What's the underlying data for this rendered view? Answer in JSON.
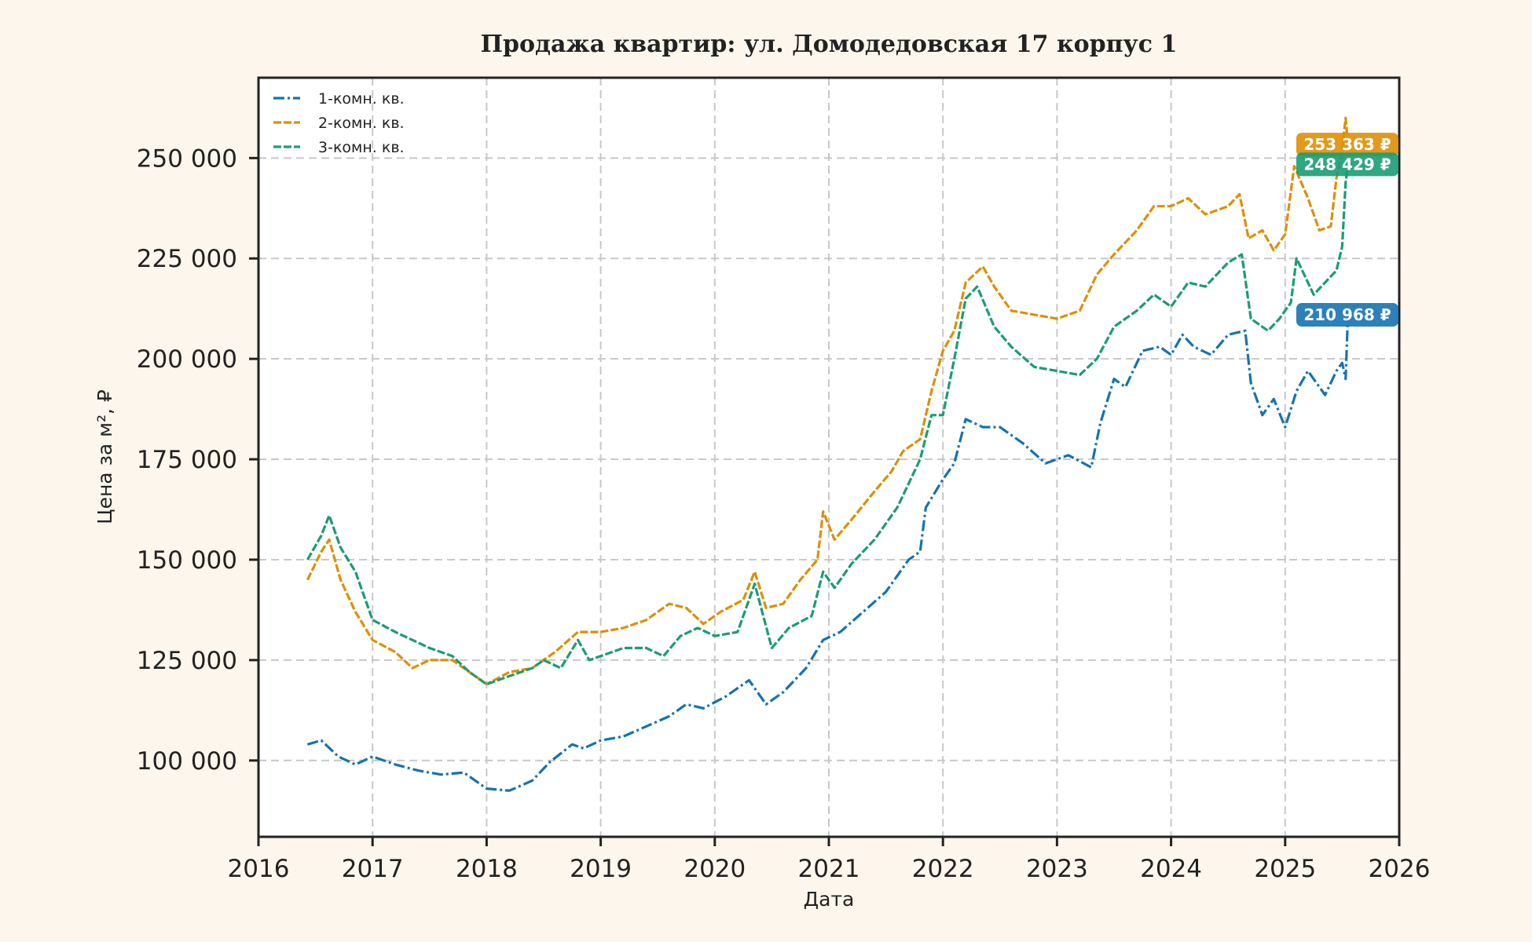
{
  "chart_data": {
    "type": "line",
    "title": "Продажа квартир: ул. Домодедовская 17 корпус 1",
    "xlabel": "Дата",
    "ylabel": "Цена за м², ₽",
    "xlim": [
      2016,
      2026
    ],
    "ylim": [
      81000,
      270000
    ],
    "x_ticks": [
      "2016",
      "2017",
      "2018",
      "2019",
      "2020",
      "2021",
      "2022",
      "2023",
      "2024",
      "2025",
      "2026"
    ],
    "y_ticks": [
      100000,
      125000,
      150000,
      175000,
      200000,
      225000,
      250000
    ],
    "y_tick_labels": [
      "100 000",
      "125 000",
      "150 000",
      "175 000",
      "200 000",
      "225 000",
      "250 000"
    ],
    "grid": true,
    "legend_position": "top-left",
    "series": [
      {
        "name": "1-комн. кв.",
        "color": "#1473b0",
        "last_label": "210 968 ₽",
        "points": [
          [
            2016.43,
            104000
          ],
          [
            2016.55,
            105000
          ],
          [
            2016.7,
            101000
          ],
          [
            2016.85,
            99000
          ],
          [
            2017.0,
            101000
          ],
          [
            2017.2,
            99000
          ],
          [
            2017.4,
            97500
          ],
          [
            2017.6,
            96500
          ],
          [
            2017.8,
            97000
          ],
          [
            2018.0,
            93000
          ],
          [
            2018.2,
            92500
          ],
          [
            2018.4,
            95000
          ],
          [
            2018.55,
            99500
          ],
          [
            2018.75,
            104000
          ],
          [
            2018.85,
            103000
          ],
          [
            2019.0,
            105000
          ],
          [
            2019.2,
            106000
          ],
          [
            2019.4,
            108500
          ],
          [
            2019.6,
            111000
          ],
          [
            2019.75,
            114000
          ],
          [
            2019.9,
            113000
          ],
          [
            2020.1,
            116000
          ],
          [
            2020.3,
            120000
          ],
          [
            2020.45,
            114000
          ],
          [
            2020.6,
            117000
          ],
          [
            2020.8,
            123000
          ],
          [
            2020.95,
            130000
          ],
          [
            2021.1,
            132000
          ],
          [
            2021.3,
            137000
          ],
          [
            2021.5,
            142000
          ],
          [
            2021.7,
            150000
          ],
          [
            2021.8,
            152000
          ],
          [
            2021.85,
            163000
          ],
          [
            2022.0,
            170000
          ],
          [
            2022.1,
            174000
          ],
          [
            2022.2,
            185000
          ],
          [
            2022.35,
            183000
          ],
          [
            2022.5,
            183000
          ],
          [
            2022.7,
            179000
          ],
          [
            2022.9,
            174000
          ],
          [
            2023.1,
            176000
          ],
          [
            2023.3,
            173000
          ],
          [
            2023.38,
            184000
          ],
          [
            2023.5,
            195000
          ],
          [
            2023.6,
            193000
          ],
          [
            2023.75,
            202000
          ],
          [
            2023.9,
            203000
          ],
          [
            2024.0,
            201000
          ],
          [
            2024.1,
            206000
          ],
          [
            2024.2,
            203000
          ],
          [
            2024.35,
            201000
          ],
          [
            2024.5,
            206000
          ],
          [
            2024.65,
            207000
          ],
          [
            2024.7,
            194000
          ],
          [
            2024.8,
            186000
          ],
          [
            2024.9,
            190000
          ],
          [
            2025.0,
            183000
          ],
          [
            2025.1,
            192000
          ],
          [
            2025.2,
            197000
          ],
          [
            2025.35,
            191000
          ],
          [
            2025.45,
            197000
          ],
          [
            2025.5,
            199000
          ],
          [
            2025.53,
            195000
          ],
          [
            2025.55,
            210968
          ]
        ]
      },
      {
        "name": "2-комн. кв.",
        "color": "#de8f05",
        "last_label": "253 363 ₽",
        "points": [
          [
            2016.43,
            145000
          ],
          [
            2016.55,
            152000
          ],
          [
            2016.62,
            155000
          ],
          [
            2016.72,
            145000
          ],
          [
            2016.85,
            137000
          ],
          [
            2017.0,
            130000
          ],
          [
            2017.2,
            127000
          ],
          [
            2017.35,
            123000
          ],
          [
            2017.5,
            125000
          ],
          [
            2017.7,
            125000
          ],
          [
            2017.85,
            122000
          ],
          [
            2018.0,
            119000
          ],
          [
            2018.2,
            122000
          ],
          [
            2018.4,
            123000
          ],
          [
            2018.6,
            127000
          ],
          [
            2018.8,
            132000
          ],
          [
            2019.0,
            132000
          ],
          [
            2019.2,
            133000
          ],
          [
            2019.4,
            135000
          ],
          [
            2019.6,
            139000
          ],
          [
            2019.75,
            138000
          ],
          [
            2019.9,
            134000
          ],
          [
            2020.05,
            137000
          ],
          [
            2020.25,
            140000
          ],
          [
            2020.35,
            147000
          ],
          [
            2020.45,
            138000
          ],
          [
            2020.6,
            139000
          ],
          [
            2020.75,
            145000
          ],
          [
            2020.9,
            150000
          ],
          [
            2020.95,
            162000
          ],
          [
            2021.05,
            155000
          ],
          [
            2021.2,
            160000
          ],
          [
            2021.4,
            167000
          ],
          [
            2021.55,
            172000
          ],
          [
            2021.65,
            177000
          ],
          [
            2021.8,
            180000
          ],
          [
            2021.9,
            192000
          ],
          [
            2022.0,
            202000
          ],
          [
            2022.1,
            207000
          ],
          [
            2022.2,
            219000
          ],
          [
            2022.35,
            223000
          ],
          [
            2022.45,
            218000
          ],
          [
            2022.6,
            212000
          ],
          [
            2022.8,
            211000
          ],
          [
            2023.0,
            210000
          ],
          [
            2023.2,
            212000
          ],
          [
            2023.35,
            221000
          ],
          [
            2023.5,
            226000
          ],
          [
            2023.7,
            232000
          ],
          [
            2023.85,
            238000
          ],
          [
            2024.0,
            238000
          ],
          [
            2024.15,
            240000
          ],
          [
            2024.3,
            236000
          ],
          [
            2024.5,
            238000
          ],
          [
            2024.6,
            241000
          ],
          [
            2024.68,
            230000
          ],
          [
            2024.8,
            232000
          ],
          [
            2024.9,
            227000
          ],
          [
            2025.0,
            231000
          ],
          [
            2025.08,
            248000
          ],
          [
            2025.2,
            240000
          ],
          [
            2025.3,
            232000
          ],
          [
            2025.4,
            233000
          ],
          [
            2025.45,
            245000
          ],
          [
            2025.5,
            252000
          ],
          [
            2025.53,
            260000
          ],
          [
            2025.55,
            253363
          ]
        ]
      },
      {
        "name": "3-комн. кв.",
        "color": "#1a9c74",
        "last_label": "248 429 ₽",
        "points": [
          [
            2016.43,
            150000
          ],
          [
            2016.55,
            156000
          ],
          [
            2016.62,
            161000
          ],
          [
            2016.72,
            153000
          ],
          [
            2016.85,
            147000
          ],
          [
            2017.0,
            135000
          ],
          [
            2017.2,
            132000
          ],
          [
            2017.35,
            130000
          ],
          [
            2017.5,
            128000
          ],
          [
            2017.7,
            126000
          ],
          [
            2017.85,
            122000
          ],
          [
            2018.0,
            119000
          ],
          [
            2018.2,
            121000
          ],
          [
            2018.4,
            123000
          ],
          [
            2018.5,
            125000
          ],
          [
            2018.65,
            123000
          ],
          [
            2018.8,
            130000
          ],
          [
            2018.9,
            125000
          ],
          [
            2019.0,
            126000
          ],
          [
            2019.2,
            128000
          ],
          [
            2019.4,
            128000
          ],
          [
            2019.55,
            126000
          ],
          [
            2019.7,
            131000
          ],
          [
            2019.85,
            133000
          ],
          [
            2020.0,
            131000
          ],
          [
            2020.2,
            132000
          ],
          [
            2020.35,
            144000
          ],
          [
            2020.5,
            128000
          ],
          [
            2020.65,
            133000
          ],
          [
            2020.85,
            136000
          ],
          [
            2020.95,
            147000
          ],
          [
            2021.05,
            143000
          ],
          [
            2021.2,
            149000
          ],
          [
            2021.4,
            155000
          ],
          [
            2021.6,
            163000
          ],
          [
            2021.8,
            175000
          ],
          [
            2021.9,
            186000
          ],
          [
            2022.0,
            186000
          ],
          [
            2022.1,
            200000
          ],
          [
            2022.2,
            215000
          ],
          [
            2022.3,
            218000
          ],
          [
            2022.45,
            208000
          ],
          [
            2022.6,
            203000
          ],
          [
            2022.8,
            198000
          ],
          [
            2023.0,
            197000
          ],
          [
            2023.2,
            196000
          ],
          [
            2023.35,
            200000
          ],
          [
            2023.5,
            208000
          ],
          [
            2023.7,
            212000
          ],
          [
            2023.85,
            216000
          ],
          [
            2024.0,
            213000
          ],
          [
            2024.15,
            219000
          ],
          [
            2024.3,
            218000
          ],
          [
            2024.5,
            224000
          ],
          [
            2024.62,
            226000
          ],
          [
            2024.7,
            210000
          ],
          [
            2024.85,
            207000
          ],
          [
            2024.95,
            210000
          ],
          [
            2025.05,
            214000
          ],
          [
            2025.1,
            225000
          ],
          [
            2025.25,
            216000
          ],
          [
            2025.35,
            219000
          ],
          [
            2025.45,
            222000
          ],
          [
            2025.5,
            228000
          ],
          [
            2025.53,
            244000
          ],
          [
            2025.55,
            248429
          ]
        ]
      }
    ]
  }
}
